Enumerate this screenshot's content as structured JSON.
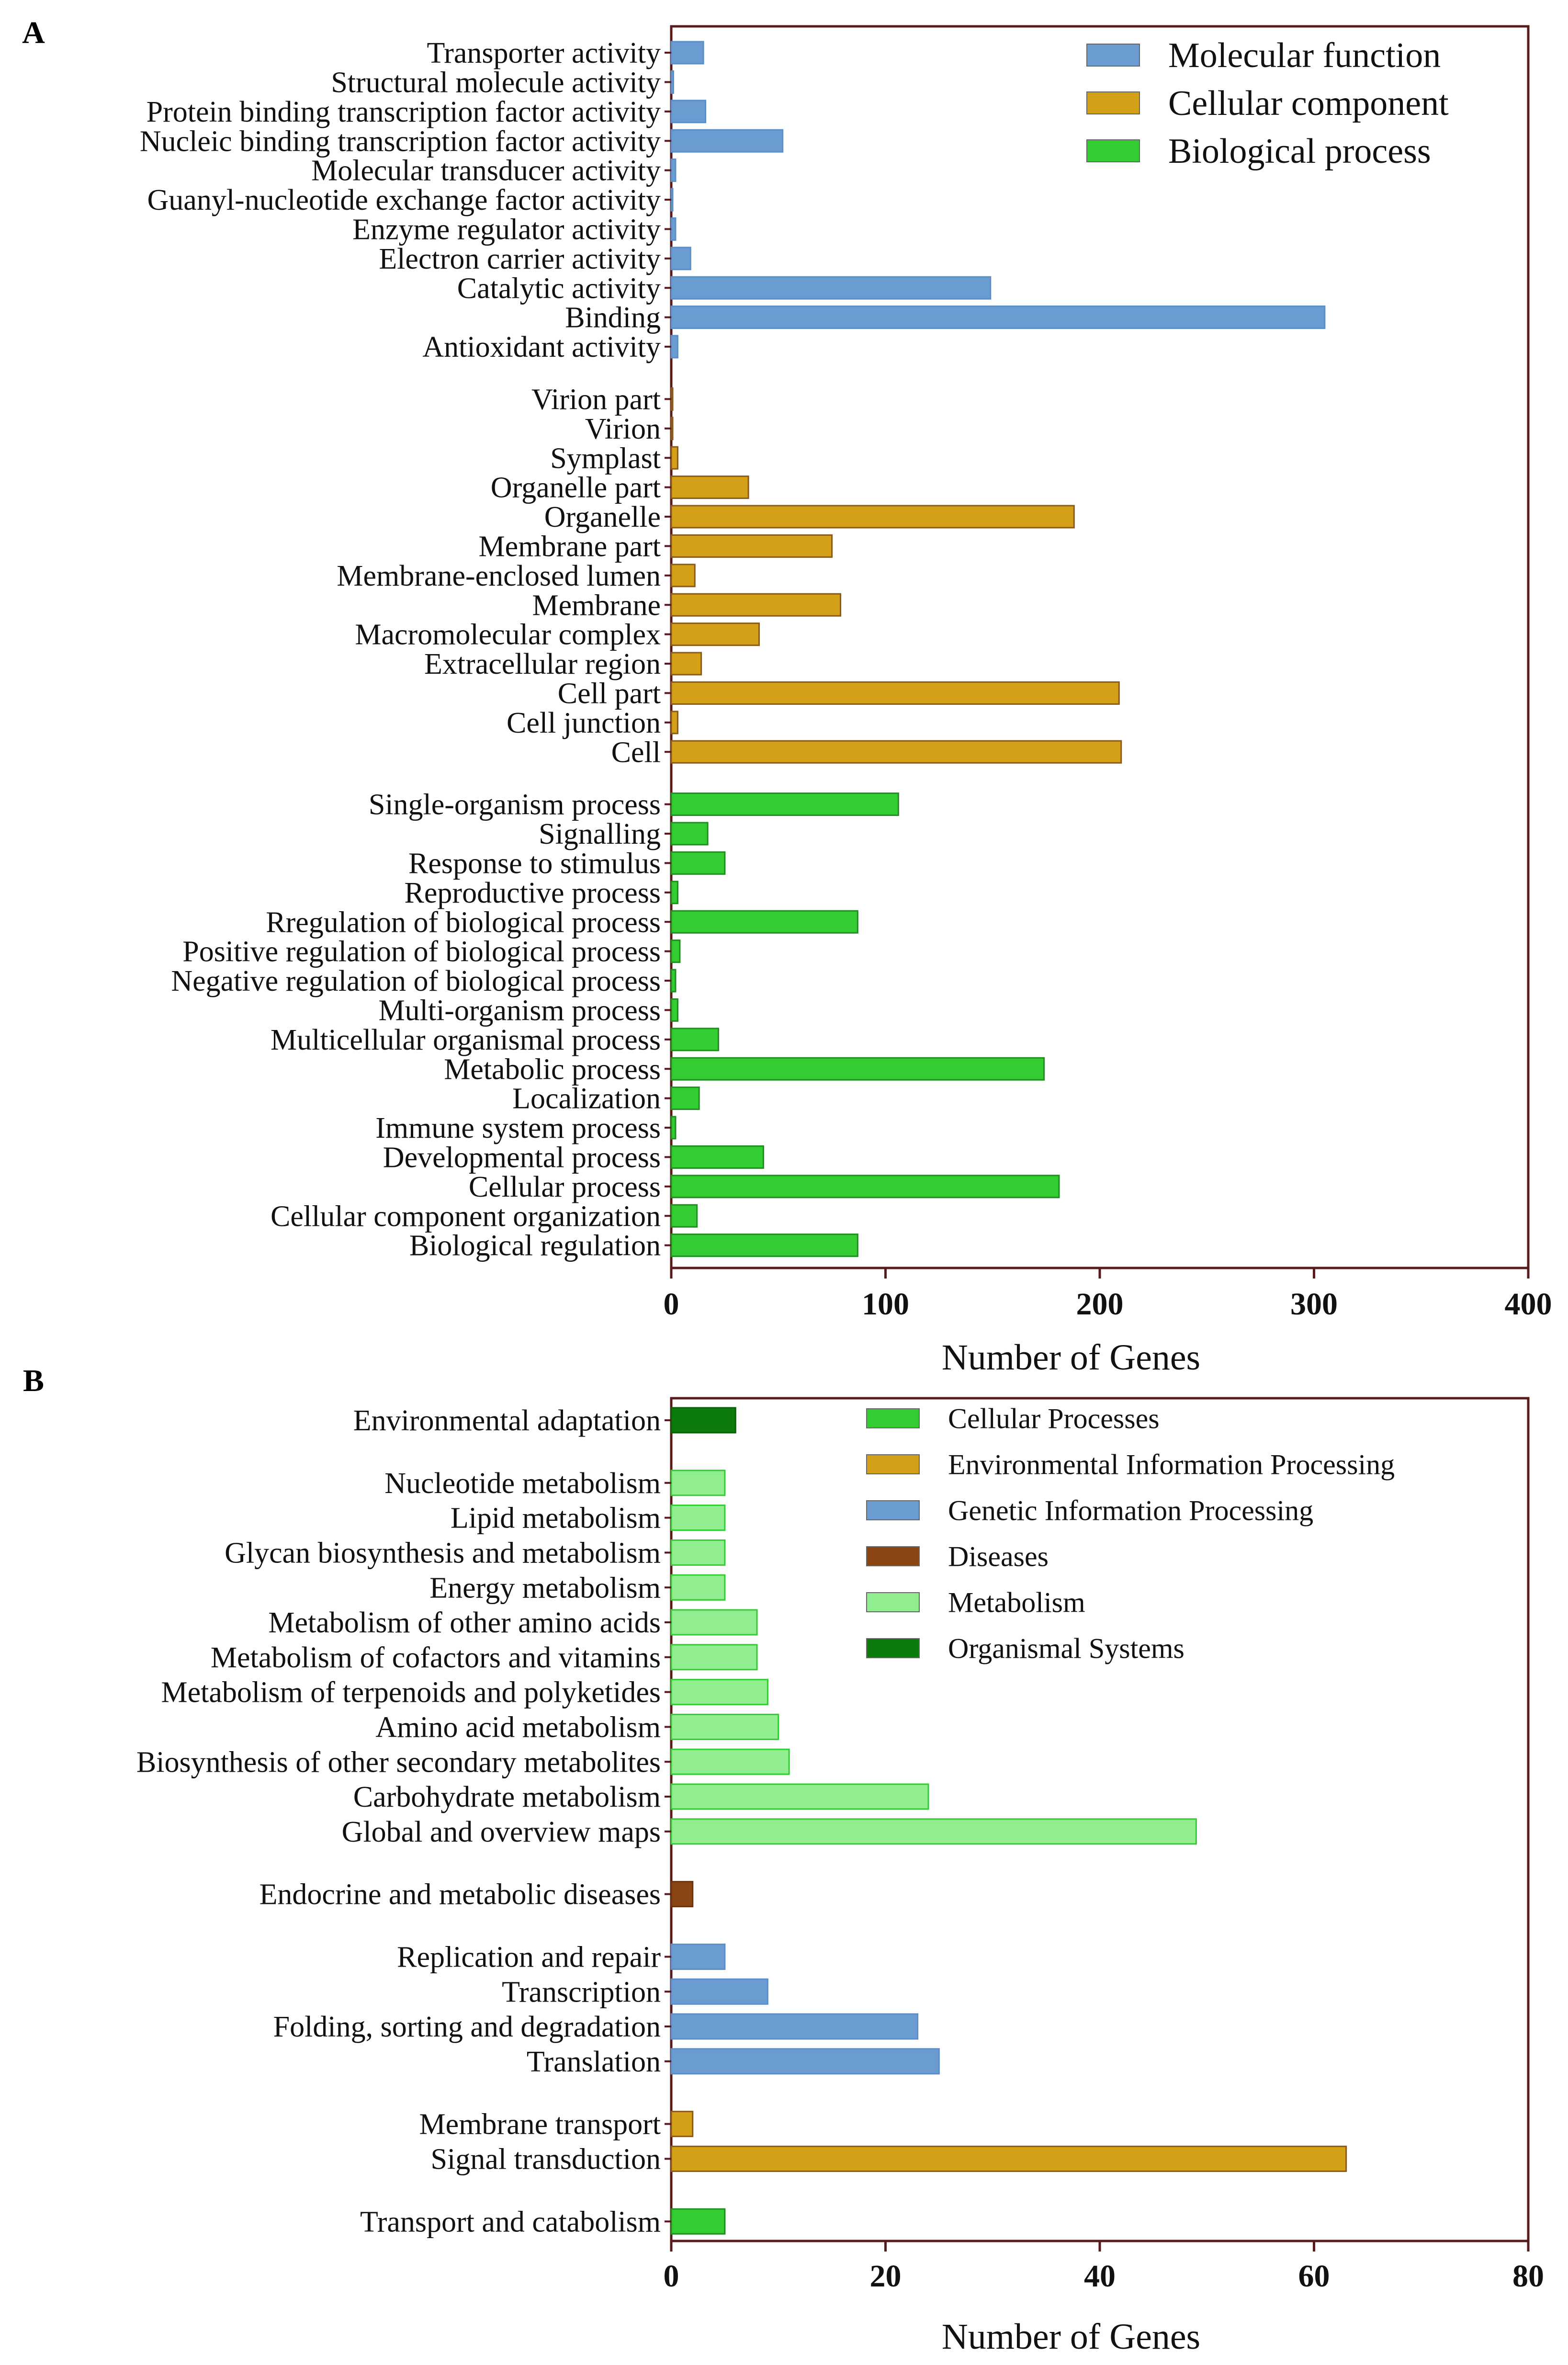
{
  "chart_data": [
    {
      "panel_label": "A",
      "type": "bar",
      "orientation": "horizontal",
      "xlabel": "Number of Genes",
      "xlim": [
        0,
        400
      ],
      "xticks": [
        0,
        100,
        200,
        300,
        400
      ],
      "grid": false,
      "legend_position": "top-right",
      "legend": [
        {
          "name": "Molecular function",
          "color": "#6a9bd1"
        },
        {
          "name": "Cellular component",
          "color": "#d4a017"
        },
        {
          "name": "Biological process",
          "color": "#33cc33"
        }
      ],
      "groups": [
        {
          "name": "Molecular function",
          "color": "#6a9bd1",
          "edge": "#5b8fc9",
          "categories": [
            "Transporter activity",
            "Structural molecule activity",
            "Protein binding transcription factor activity",
            "Nucleic binding transcription factor activity",
            "Molecular transducer activity",
            "Guanyl-nucleotide exchange factor activity",
            "Enzyme regulator activity",
            "Electron carrier activity",
            "Catalytic activity",
            "Binding",
            "Antioxidant activity"
          ],
          "values": [
            15,
            1,
            16,
            52,
            2,
            0.5,
            2,
            9,
            149,
            305,
            3
          ]
        },
        {
          "name": "Cellular component",
          "color": "#d4a017",
          "edge": "#8a5a1a",
          "categories": [
            "Virion part",
            "Virion",
            "Symplast",
            "Organelle part",
            "Organelle",
            "Membrane part",
            "Membrane-enclosed lumen",
            "Membrane",
            "Macromolecular complex",
            "Extracellular region",
            "Cell part",
            "Cell junction",
            "Cell"
          ],
          "values": [
            0.5,
            0.5,
            3,
            36,
            188,
            75,
            11,
            79,
            41,
            14,
            209,
            3,
            210
          ]
        },
        {
          "name": "Biological process",
          "color": "#33cc33",
          "edge": "#1f8f1f",
          "categories": [
            "Single-organism process",
            "Signalling",
            "Response to stimulus",
            "Reproductive process",
            "Rregulation of biological process",
            "Positive regulation of biological process",
            "Negative regulation of biological process",
            "Multi-organism process",
            "Multicellular organismal process",
            "Metabolic process",
            "Localization",
            "Immune system process",
            "Developmental process",
            "Cellular process",
            "Cellular component organization",
            "Biological regulation"
          ],
          "values": [
            106,
            17,
            25,
            3,
            87,
            4,
            2,
            3,
            22,
            174,
            13,
            2,
            43,
            181,
            12,
            87
          ]
        }
      ]
    },
    {
      "panel_label": "B",
      "type": "bar",
      "orientation": "horizontal",
      "xlabel": "Number of Genes",
      "xlim": [
        0,
        80
      ],
      "xticks": [
        0,
        20,
        40,
        60,
        80
      ],
      "grid": false,
      "legend_position": "top-right",
      "legend": [
        {
          "name": "Cellular Processes",
          "color": "#33cc33"
        },
        {
          "name": "Environmental Information Processing",
          "color": "#d4a017"
        },
        {
          "name": "Genetic Information Processing",
          "color": "#6a9bd1"
        },
        {
          "name": "Diseases",
          "color": "#8b4513"
        },
        {
          "name": "Metabolism",
          "color": "#90ee90"
        },
        {
          "name": "Organismal Systems",
          "color": "#0d7a0d"
        }
      ],
      "groups": [
        {
          "name": "Organismal Systems",
          "color": "#0d7a0d",
          "edge": "#0a5f0a",
          "categories": [
            "Environmental adaptation"
          ],
          "values": [
            6
          ]
        },
        {
          "name": "Metabolism",
          "color": "#90ee90",
          "edge": "#33cc33",
          "categories": [
            "Nucleotide metabolism",
            "Lipid metabolism",
            "Glycan biosynthesis and metabolism",
            "Energy metabolism",
            "Metabolism of other amino acids",
            "Metabolism of cofactors and vitamins",
            "Metabolism of terpenoids and polyketides",
            "Amino acid metabolism",
            "Biosynthesis of other secondary metabolites",
            "Carbohydrate metabolism",
            "Global and overview maps"
          ],
          "values": [
            5,
            5,
            5,
            5,
            8,
            8,
            9,
            10,
            11,
            24,
            49
          ]
        },
        {
          "name": "Diseases",
          "color": "#8b4513",
          "edge": "#6b3410",
          "categories": [
            "Endocrine and metabolic diseases"
          ],
          "values": [
            2
          ]
        },
        {
          "name": "Genetic Information Processing",
          "color": "#6a9bd1",
          "edge": "#5b8fc9",
          "categories": [
            "Replication and repair",
            "Transcription",
            "Folding, sorting and degradation",
            "Translation"
          ],
          "values": [
            5,
            9,
            23,
            25
          ]
        },
        {
          "name": "Environmental Information Processing",
          "color": "#d4a017",
          "edge": "#8a5a1a",
          "categories": [
            "Membrane transport",
            "Signal transduction"
          ],
          "values": [
            2,
            63
          ]
        },
        {
          "name": "Cellular Processes",
          "color": "#33cc33",
          "edge": "#1f8f1f",
          "categories": [
            "Transport and catabolism"
          ],
          "values": [
            5
          ]
        }
      ]
    }
  ]
}
